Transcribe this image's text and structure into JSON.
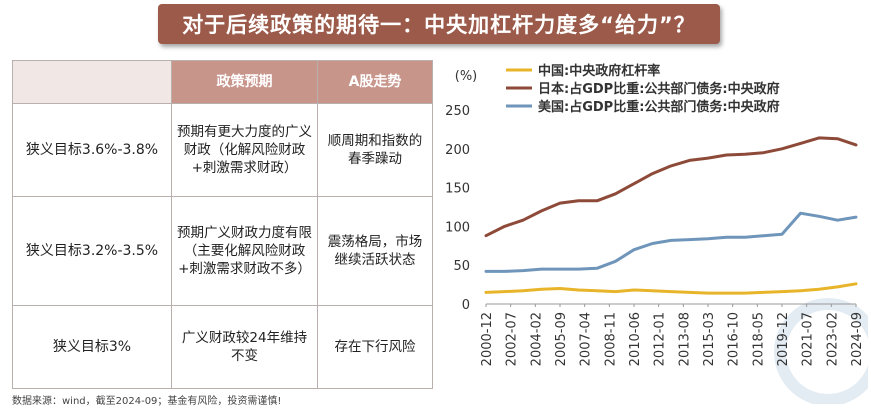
{
  "banner": {
    "title": "对于后续政策的期待一：中央加杠杆力度多“给力”？"
  },
  "table": {
    "headers": [
      "",
      "政策预期",
      "A股走势"
    ],
    "rows": [
      {
        "target": "狭义目标3.6%-3.8%",
        "policy": "预期有更大力度的广义财政（化解风险财政+刺激需求财政）",
        "market": "顺周期和指数的春季躁动"
      },
      {
        "target": "狭义目标3.2%-3.5%",
        "policy": "预期广义财政力度有限（主要化解风险财政+刺激需求财政不多）",
        "market": "震荡格局，市场继续活跃状态"
      },
      {
        "target": "狭义目标3%",
        "policy": "广义财政较24年维持不变",
        "market": "存在下行风险"
      }
    ]
  },
  "source_note": "数据来源：wind，截至2024-09；基金有风险，投资需谨慎!",
  "chart_data": {
    "type": "line",
    "unit_label": "(%)",
    "ylim": [
      0,
      250
    ],
    "yticks": [
      0,
      50,
      100,
      150,
      200,
      250
    ],
    "xticks": [
      "2000-12",
      "2002-07",
      "2004-02",
      "2005-09",
      "2007-04",
      "2008-11",
      "2010-06",
      "2012-01",
      "2013-08",
      "2015-03",
      "2016-10",
      "2018-05",
      "2019-12",
      "2021-07",
      "2023-02",
      "2024-09"
    ],
    "legend_position": "top",
    "grid": false,
    "series": [
      {
        "name": "中国:中央政府杠杆率",
        "color": "#e8b42a",
        "values": [
          15,
          16,
          17,
          19,
          20,
          18,
          17,
          16,
          18,
          17,
          16,
          15,
          14,
          14,
          14,
          15,
          16,
          17,
          19,
          22,
          26
        ]
      },
      {
        "name": "日本:占GDP比重:公共部门债务:中央政府",
        "color": "#8e4a38",
        "values": [
          88,
          100,
          108,
          120,
          130,
          133,
          133,
          142,
          155,
          168,
          178,
          185,
          188,
          192,
          193,
          195,
          200,
          207,
          214,
          213,
          205
        ]
      },
      {
        "name": "美国:占GDP比重:公共部门债务:中央政府",
        "color": "#6f96ba",
        "values": [
          42,
          42,
          43,
          45,
          45,
          45,
          46,
          55,
          70,
          78,
          82,
          83,
          84,
          86,
          86,
          88,
          90,
          117,
          113,
          108,
          112
        ]
      }
    ]
  }
}
